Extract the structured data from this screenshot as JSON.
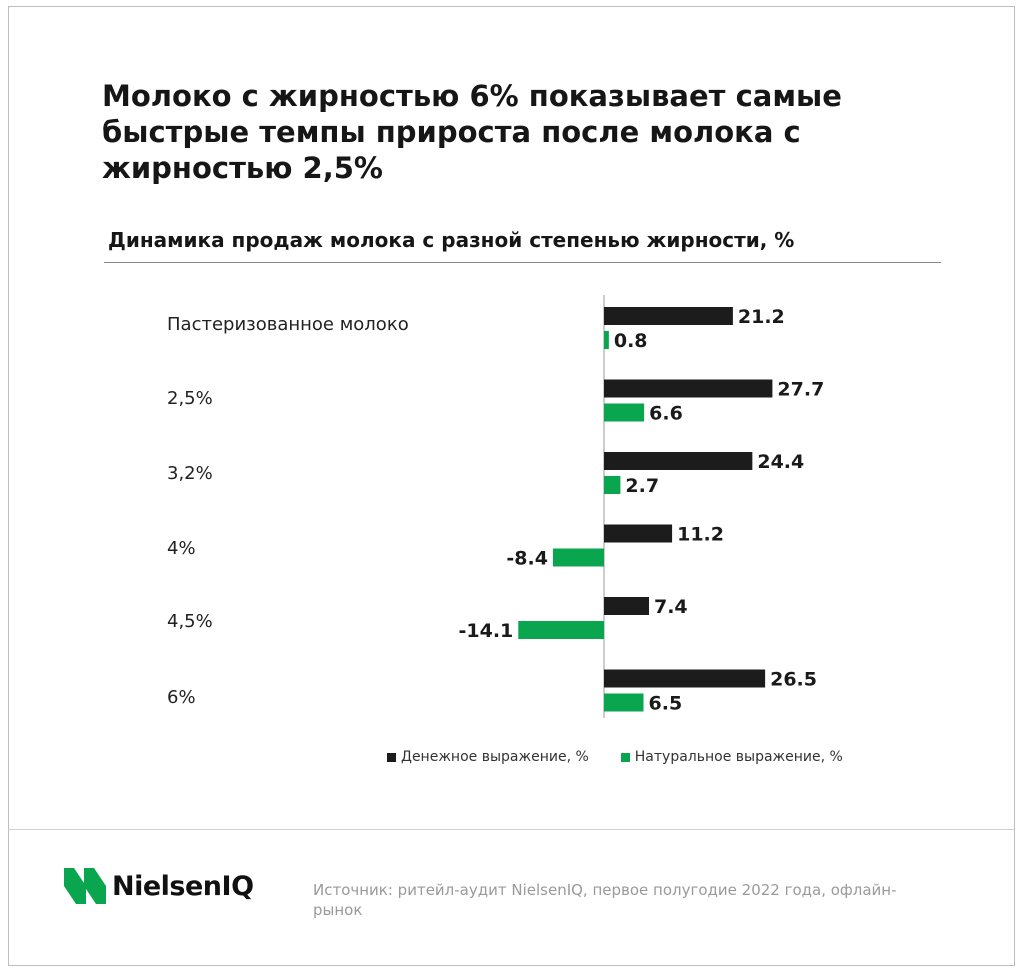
{
  "title": "Молоко с жирностью 6% показывает самые быстрые темпы прироста после молока с жирностью 2,5%",
  "subtitle": "Динамика продаж молока с разной степенью жирности, %",
  "chart_data": {
    "type": "bar",
    "orientation": "horizontal",
    "categories": [
      "Пастеризованное молоко",
      "2,5%",
      "3,2%",
      "4%",
      "4,5%",
      "6%"
    ],
    "series": [
      {
        "name": "Денежное выражение, %",
        "color": "#1c1c1c",
        "values": [
          21.2,
          27.7,
          24.4,
          11.2,
          7.4,
          26.5
        ],
        "labels": [
          "21.2",
          "27.7",
          "24.4",
          "11.2",
          "7.4",
          "26.5"
        ]
      },
      {
        "name": "Натуральное выражение, %",
        "color": "#0aa64f",
        "values": [
          0.8,
          6.6,
          2.7,
          -8.4,
          -14.1,
          6.5
        ],
        "labels": [
          "0.8",
          "6.6",
          "2.7",
          "-8.4",
          "-14.1",
          "6.5"
        ]
      }
    ],
    "legend_position": "bottom",
    "grid": false
  },
  "source": "Источник: ритейл-аудит NielsenIQ, первое полугодие 2022 года, офлайн-рынок",
  "logo": {
    "text": "NielsenIQ",
    "color": "#0aa64f"
  }
}
